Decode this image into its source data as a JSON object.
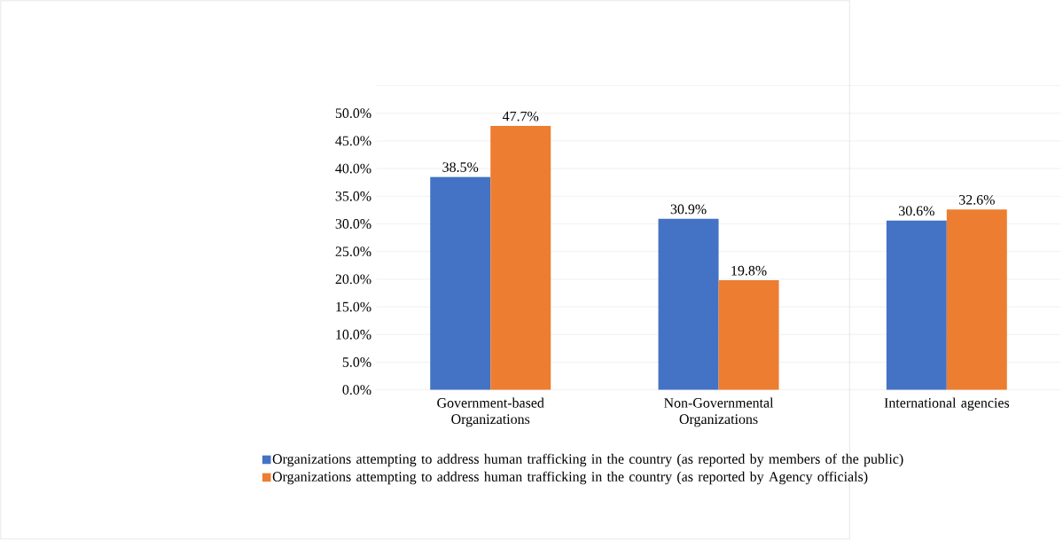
{
  "chart_data": {
    "type": "bar",
    "categories": [
      "Government-based Organizations",
      "Non-Governmental Organizations",
      "International agencies"
    ],
    "series": [
      {
        "name": "Organizations attempting to address human trafficking in the country (as reported by members of the public)",
        "color": "#4472c4",
        "values": [
          38.5,
          30.9,
          30.6
        ],
        "value_labels": [
          "38.5%",
          "30.9%",
          "30.6%"
        ]
      },
      {
        "name": "Organizations attempting to address human trafficking in the country (as reported by Agency officials)",
        "color": "#ed7d31",
        "values": [
          47.7,
          19.8,
          32.6
        ],
        "value_labels": [
          "47.7%",
          "19.8%",
          "32.6%"
        ]
      }
    ],
    "ylim": [
      0,
      55
    ],
    "yticks": [
      {
        "value": 0,
        "label": "0.0%"
      },
      {
        "value": 5,
        "label": "5.0%"
      },
      {
        "value": 10,
        "label": "10.0%"
      },
      {
        "value": 15,
        "label": "15.0%"
      },
      {
        "value": 20,
        "label": "20.0%"
      },
      {
        "value": 25,
        "label": "25.0%"
      },
      {
        "value": 30,
        "label": "30.0%"
      },
      {
        "value": 35,
        "label": "35.0%"
      },
      {
        "value": 40,
        "label": "40.0%"
      },
      {
        "value": 45,
        "label": "45.0%"
      },
      {
        "value": 50,
        "label": "50.0%"
      },
      {
        "value": 55,
        "label": null
      }
    ],
    "grid": "y",
    "legend": "bottom"
  }
}
